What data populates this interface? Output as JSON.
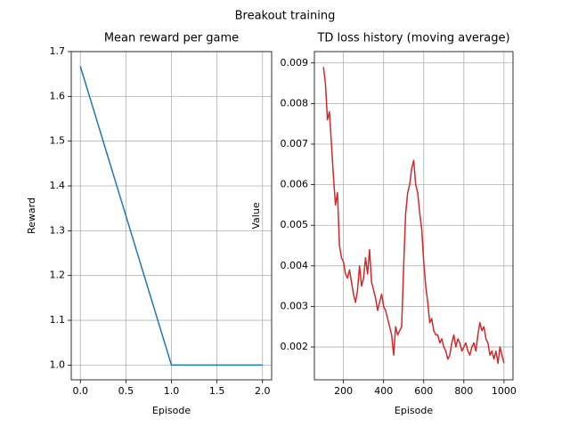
{
  "title": "Breakout training",
  "chart_data": [
    {
      "type": "line",
      "title": "Mean reward per game",
      "x_label": "Episode",
      "y_label": "Reward",
      "series": [
        {
          "color": "#1f77b4",
          "x": [
            0,
            1,
            2
          ],
          "values": [
            1.667,
            1.0,
            1.0
          ]
        }
      ],
      "xlim": [
        -0.1,
        2.1
      ],
      "ylim": [
        0.967,
        1.7
      ],
      "xticks": [
        {
          "value": 0,
          "label": "0.0"
        },
        0.5,
        {
          "value": 1,
          "label": "1.0"
        },
        1.5,
        {
          "value": 2,
          "label": "2.0"
        }
      ],
      "yticks": [
        {
          "value": 1,
          "label": "1.0"
        },
        1.1,
        1.2,
        1.3,
        1.4,
        1.5,
        1.6,
        1.7
      ],
      "grid": true
    },
    {
      "type": "line",
      "title": "TD loss history (moving average)",
      "x_label": "Episode",
      "y_label": "Value",
      "series": [
        {
          "color": "#d62728",
          "x": [
            100,
            110,
            120,
            130,
            140,
            150,
            160,
            170,
            180,
            190,
            200,
            210,
            220,
            230,
            240,
            250,
            260,
            270,
            280,
            290,
            300,
            310,
            320,
            330,
            340,
            350,
            360,
            370,
            380,
            390,
            400,
            410,
            420,
            430,
            440,
            450,
            460,
            470,
            480,
            490,
            500,
            510,
            520,
            530,
            540,
            550,
            560,
            570,
            580,
            590,
            600,
            610,
            620,
            630,
            640,
            650,
            660,
            670,
            680,
            690,
            700,
            710,
            720,
            730,
            740,
            750,
            760,
            770,
            780,
            790,
            800,
            810,
            820,
            830,
            840,
            850,
            860,
            870,
            880,
            890,
            900,
            910,
            920,
            930,
            940,
            950,
            960,
            970,
            980,
            990,
            1000
          ],
          "values": [
            0.0089,
            0.0085,
            0.0076,
            0.0078,
            0.007,
            0.0062,
            0.0055,
            0.0058,
            0.0045,
            0.0042,
            0.0041,
            0.0038,
            0.0037,
            0.0039,
            0.0036,
            0.0033,
            0.0031,
            0.0034,
            0.004,
            0.0035,
            0.0037,
            0.0042,
            0.0038,
            0.0044,
            0.0036,
            0.0034,
            0.0032,
            0.0029,
            0.0031,
            0.0033,
            0.003,
            0.0029,
            0.0027,
            0.0025,
            0.0023,
            0.0018,
            0.0025,
            0.0023,
            0.0024,
            0.0025,
            0.004,
            0.0053,
            0.0058,
            0.006,
            0.0064,
            0.0066,
            0.006,
            0.0058,
            0.0053,
            0.0049,
            0.0041,
            0.0035,
            0.0031,
            0.0026,
            0.0027,
            0.0024,
            0.0023,
            0.0023,
            0.0021,
            0.0022,
            0.002,
            0.0019,
            0.0017,
            0.0018,
            0.0021,
            0.0023,
            0.002,
            0.0022,
            0.0021,
            0.0019,
            0.002,
            0.0021,
            0.0019,
            0.0018,
            0.002,
            0.0021,
            0.0019,
            0.0023,
            0.0026,
            0.0024,
            0.0025,
            0.0022,
            0.0021,
            0.0018,
            0.0019,
            0.0017,
            0.0019,
            0.0016,
            0.002,
            0.0018,
            0.0016
          ]
        }
      ],
      "xlim": [
        55,
        1045
      ],
      "ylim": [
        0.00119,
        0.00928
      ],
      "xticks": [
        200,
        400,
        600,
        800,
        1000
      ],
      "yticks": [
        0.002,
        0.003,
        0.004,
        0.005,
        0.006,
        0.007,
        0.008,
        0.009
      ],
      "grid": true
    }
  ]
}
